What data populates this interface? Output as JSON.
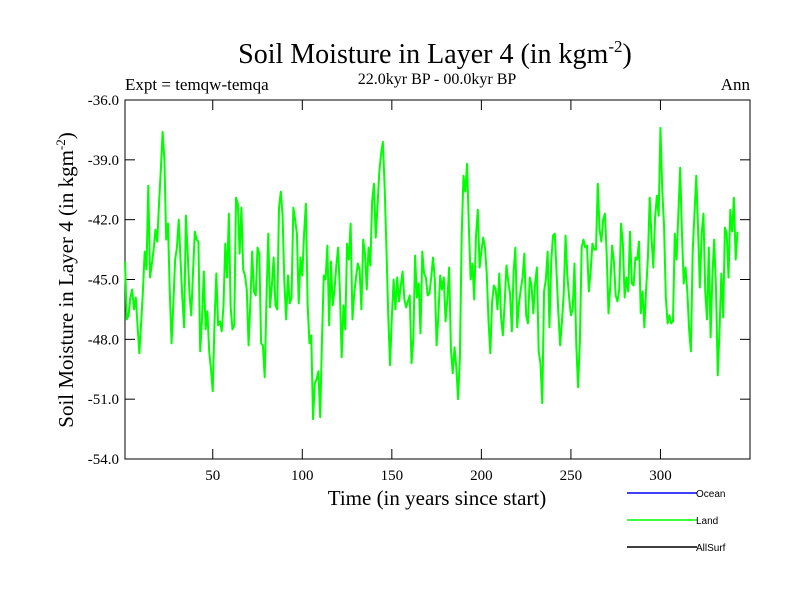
{
  "chart_data": {
    "type": "line",
    "title": "Soil Moisture in Layer 4 (in kgm",
    "title_sup": "-2",
    "title_close": ")",
    "subtitle": "22.0kyr BP - 00.0kyr BP",
    "expt_label": "Expt = temqw-temqa",
    "season_label": "Ann",
    "xlabel": "Time (in years since start)",
    "ylabel": "Soil Moisture in Layer 4 (in kgm",
    "ylabel_sup": "-2",
    "ylabel_close": ")",
    "xlim": [
      1,
      350
    ],
    "ylim": [
      -54.0,
      -36.0
    ],
    "x_ticks": [
      50,
      100,
      150,
      200,
      250,
      300
    ],
    "x_tick_labels": [
      "50",
      "100",
      "150",
      "200",
      "250",
      "300"
    ],
    "y_ticks": [
      -54.0,
      -51.0,
      -48.0,
      -45.0,
      -42.0,
      -39.0,
      -36.0
    ],
    "y_tick_labels": [
      "-54.0",
      "-51.0",
      "-48.0",
      "-45.0",
      "-42.0",
      "-39.0",
      "-36.0"
    ],
    "grid": false,
    "legend_position": "bottom-right",
    "legend": [
      {
        "name": "Ocean",
        "color": "#0000ff"
      },
      {
        "name": "Land",
        "color": "#00ff00"
      },
      {
        "name": "AllSurf",
        "color": "#000000"
      }
    ],
    "series": [
      {
        "name": "Land",
        "color": "#00ff00",
        "x_start": 1,
        "x_step": 1,
        "values": [
          -44.1,
          -47.0,
          -46.8,
          -45.9,
          -45.5,
          -46.5,
          -45.9,
          -47.3,
          -48.7,
          -47.2,
          -45.6,
          -43.6,
          -44.5,
          -40.3,
          -44.9,
          -44.2,
          -43.5,
          -42.5,
          -43.1,
          -41.2,
          -39.5,
          -37.6,
          -39.0,
          -43.0,
          -42.2,
          -45.6,
          -48.2,
          -46.2,
          -44.0,
          -43.4,
          -42.0,
          -44.0,
          -45.9,
          -47.4,
          -41.8,
          -43.7,
          -45.7,
          -46.8,
          -44.6,
          -42.6,
          -43.0,
          -43.1,
          -48.6,
          -47.0,
          -44.6,
          -47.5,
          -46.6,
          -48.6,
          -49.5,
          -50.6,
          -47.1,
          -44.7,
          -47.3,
          -47.1,
          -47.6,
          -46.3,
          -43.2,
          -44.9,
          -41.7,
          -46.4,
          -47.5,
          -47.3,
          -40.9,
          -41.2,
          -43.7,
          -41.4,
          -44.5,
          -44.8,
          -45.5,
          -48.3,
          -46.2,
          -43.6,
          -45.6,
          -45.8,
          -43.4,
          -43.7,
          -48.2,
          -48.3,
          -49.9,
          -46.0,
          -42.7,
          -46.4,
          -45.3,
          -43.9,
          -46.3,
          -46.5,
          -41.4,
          -40.6,
          -41.8,
          -45.2,
          -47.0,
          -44.8,
          -46.2,
          -45.9,
          -41.4,
          -42.0,
          -42.7,
          -46.2,
          -43.9,
          -44.8,
          -42.7,
          -41.2,
          -46.3,
          -48.2,
          -47.8,
          -52.0,
          -50.2,
          -50.0,
          -49.6,
          -51.9,
          -48.0,
          -44.8,
          -45.0,
          -43.3,
          -47.3,
          -44.1,
          -46.3,
          -45.5,
          -44.3,
          -43.4,
          -45.6,
          -48.9,
          -46.3,
          -47.5,
          -43.2,
          -44.0,
          -42.2,
          -47.0,
          -45.7,
          -44.9,
          -44.2,
          -44.5,
          -46.5,
          -43.0,
          -43.7,
          -45.5,
          -43.4,
          -44.3,
          -41.1,
          -40.2,
          -42.9,
          -41.3,
          -39.6,
          -38.7,
          -38.1,
          -40.4,
          -43.5,
          -46.8,
          -49.3,
          -46.9,
          -45.0,
          -46.5,
          -44.9,
          -46.1,
          -45.3,
          -44.6,
          -46.0,
          -46.4,
          -46.1,
          -45.8,
          -49.2,
          -48.0,
          -43.8,
          -45.9,
          -45.2,
          -47.7,
          -43.6,
          -44.7,
          -44.9,
          -45.8,
          -45.7,
          -44.9,
          -43.9,
          -45.0,
          -48.3,
          -46.8,
          -44.8,
          -45.5,
          -44.9,
          -47.1,
          -46.0,
          -44.4,
          -48.5,
          -49.7,
          -48.4,
          -49.4,
          -51.0,
          -48.9,
          -42.8,
          -39.8,
          -40.6,
          -39.2,
          -42.3,
          -45.0,
          -44.2,
          -46.0,
          -42.8,
          -41.5,
          -44.4,
          -43.6,
          -42.9,
          -43.4,
          -44.7,
          -47.1,
          -48.7,
          -46.1,
          -45.3,
          -45.5,
          -46.5,
          -44.7,
          -46.9,
          -47.8,
          -46.2,
          -44.3,
          -45.1,
          -45.7,
          -47.6,
          -44.6,
          -43.4,
          -47.4,
          -46.2,
          -45.5,
          -44.9,
          -43.7,
          -46.8,
          -47.2,
          -44.9,
          -45.3,
          -46.7,
          -45.2,
          -44.4,
          -48.6,
          -49.2,
          -51.2,
          -45.6,
          -45.0,
          -43.6,
          -47.4,
          -44.1,
          -42.8,
          -42.7,
          -44.7,
          -46.7,
          -48.3,
          -47.1,
          -45.7,
          -42.8,
          -44.8,
          -45.9,
          -46.8,
          -46.5,
          -44.2,
          -48.3,
          -50.4,
          -48.1,
          -43.4,
          -43.0,
          -43.4,
          -43.3,
          -45.6,
          -44.6,
          -43.2,
          -43.5,
          -43.5,
          -40.2,
          -42.5,
          -43.1,
          -42.0,
          -41.7,
          -43.8,
          -46.7,
          -45.3,
          -43.3,
          -44.1,
          -45.8,
          -46.1,
          -45.5,
          -42.2,
          -43.2,
          -45.9,
          -44.9,
          -45.6,
          -42.6,
          -45.2,
          -45.3,
          -43.9,
          -44.0,
          -43.1,
          -46.7,
          -45.6,
          -47.4,
          -45.5,
          -43.9,
          -40.9,
          -42.9,
          -44.4,
          -41.9,
          -40.8,
          -41.8,
          -37.4,
          -40.5,
          -42.3,
          -45.9,
          -47.2,
          -46.8,
          -47.2,
          -47.1,
          -42.7,
          -44.0,
          -41.7,
          -39.4,
          -42.7,
          -45.2,
          -44.4,
          -45.6,
          -47.5,
          -48.6,
          -43.6,
          -41.7,
          -39.8,
          -42.5,
          -45.4,
          -42.7,
          -41.7,
          -45.6,
          -47.0,
          -43.4,
          -47.9,
          -44.8,
          -43.0,
          -45.4,
          -49.8,
          -47.5,
          -44.7,
          -46.9,
          -42.4,
          -42.7,
          -44.9,
          -41.5,
          -42.6,
          -40.9,
          -44.0,
          -42.6
        ]
      }
    ]
  }
}
